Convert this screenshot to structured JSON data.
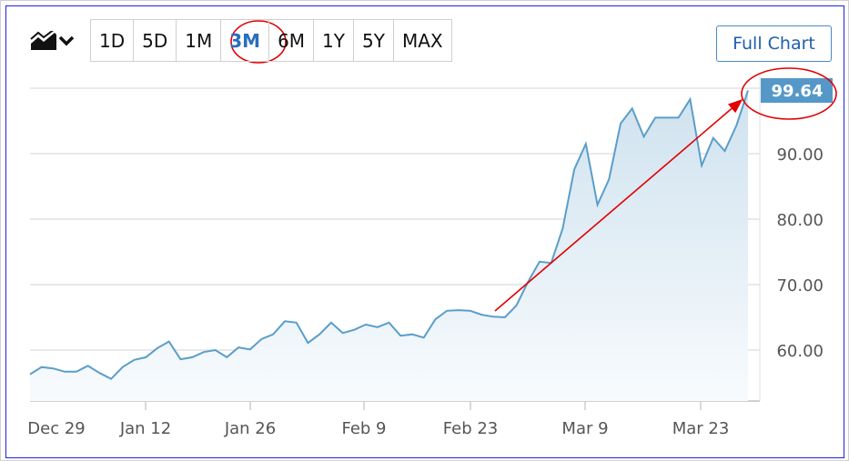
{
  "toolbar": {
    "chart_type_icon": "area-chart-icon",
    "ranges": [
      "1D",
      "5D",
      "1M",
      "3M",
      "6M",
      "1Y",
      "5Y",
      "MAX"
    ],
    "active_range": "3M",
    "full_chart_label": "Full Chart"
  },
  "colors": {
    "line": "#5a9ec9",
    "fill": "#d3e5f1",
    "badge": "#5598c8",
    "annotation": "#e00000",
    "active": "#2a6ebb"
  },
  "chart_data": {
    "type": "area",
    "x_tick_labels": [
      "Dec 29",
      "Jan 12",
      "Jan 26",
      "Feb 9",
      "Feb 23",
      "Mar 9",
      "Mar 23"
    ],
    "y_tick_labels": [
      "60.00",
      "70.00",
      "80.00",
      "90.00"
    ],
    "y_ticks": [
      60,
      70,
      80,
      90,
      100
    ],
    "ylim": [
      52.2,
      101
    ],
    "grid": true,
    "last_value_label": "99.64",
    "values": [
      56.3,
      57.4,
      57.2,
      56.7,
      56.7,
      57.6,
      56.5,
      55.6,
      57.4,
      58.5,
      58.9,
      60.3,
      61.3,
      58.6,
      58.9,
      59.7,
      60.0,
      58.9,
      60.4,
      60.1,
      61.7,
      62.4,
      64.4,
      64.2,
      61.1,
      62.4,
      64.2,
      62.6,
      63.1,
      63.9,
      63.5,
      64.2,
      62.2,
      62.4,
      61.9,
      64.7,
      66.0,
      66.1,
      66.0,
      65.4,
      65.1,
      65.0,
      66.8,
      70.4,
      73.5,
      73.3,
      78.6,
      87.6,
      91.5,
      82.2,
      86.1,
      94.6,
      96.9,
      92.6,
      95.5,
      95.5,
      95.5,
      98.3,
      88.2,
      92.4,
      90.4,
      94.3,
      99.64
    ],
    "annotations": [
      "red circle around 3M",
      "red arrow to last value",
      "red circle around 99.64"
    ]
  }
}
